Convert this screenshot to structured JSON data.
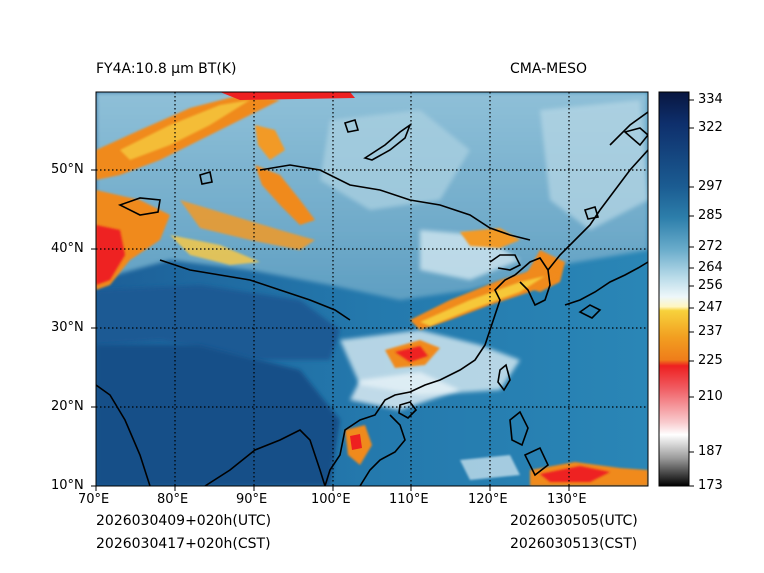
{
  "header": {
    "title_left": "FY4A:10.8 µm BT(K)",
    "title_right": "CMA-MESO"
  },
  "footer": {
    "init_utc": "2026030409+020h(UTC)",
    "init_cst": "2026030417+020h(CST)",
    "valid_utc": "2026030505(UTC)",
    "valid_cst": "2026030513(CST)"
  },
  "map": {
    "lon_labels": [
      "70°E",
      "80°E",
      "90°E",
      "100°E",
      "110°E",
      "120°E",
      "130°E"
    ],
    "lat_labels": [
      "50°N",
      "40°N",
      "30°N",
      "20°N",
      "10°N"
    ],
    "lon_range": [
      70,
      140
    ],
    "lat_range": [
      10,
      60
    ]
  },
  "colorbar": {
    "unit": "K",
    "ticks": [
      "334",
      "322",
      "297",
      "285",
      "272",
      "264",
      "256",
      "247",
      "237",
      "225",
      "210",
      "187",
      "173"
    ],
    "colors": {
      "top": "#0a1a4a",
      "deep_blue": "#123a78",
      "mid_blue": "#2a7aa8",
      "light_blue": "#8cc4dc",
      "pale": "#e6f3f8",
      "yellow": "#f5d03a",
      "orange": "#f08a1c",
      "red": "#ee1c1c",
      "pink": "#f7b3b8",
      "gray": "#8a8a8a",
      "black": "#000000"
    }
  }
}
